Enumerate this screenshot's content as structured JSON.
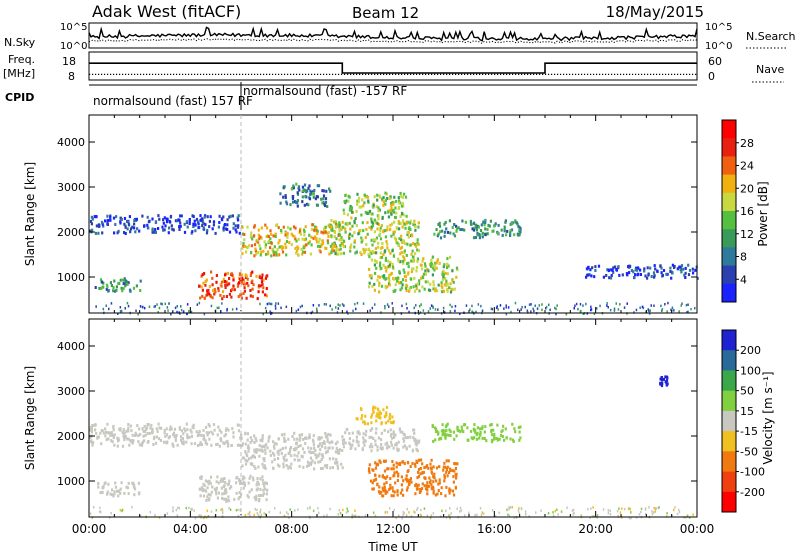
{
  "header": {
    "station": "Adak West (fitACF)",
    "beam": "Beam 12",
    "date": "18/May/2015"
  },
  "left_labels": {
    "nsky": "N.Sky",
    "freq": "Freq.",
    "freq_unit": "[MHz]",
    "cpid": "CPID"
  },
  "right_labels": {
    "nsearch": "N.Search",
    "nave": "Nave"
  },
  "cpid_blocks": [
    {
      "label": "normalsound (fast) 157 RF",
      "start_hour": 0,
      "end_hour": 6
    },
    {
      "label": "normalsound (fast) -157 RF",
      "start_hour": 6,
      "end_hour": 24
    }
  ],
  "colors": {
    "power": [
      "#1a22ff",
      "#2a3fb0",
      "#2f7a9a",
      "#3a9a5a",
      "#55c040",
      "#c8d840",
      "#f0b010",
      "#f06010",
      "#e82010",
      "#ff0000"
    ],
    "velocity": [
      "#ff0000",
      "#f04010",
      "#f07a10",
      "#f0c020",
      "#c8c8c0",
      "#80d040",
      "#3aa84a",
      "#2a6a9a",
      "#1e22d0"
    ]
  },
  "chart_data": [
    {
      "type": "line",
      "panel": "noise",
      "y_left_ticks": [
        "10^5",
        "10^0"
      ],
      "y_right_ticks": [
        "10^5",
        "10^0"
      ],
      "series": [
        {
          "name": "N.Sky",
          "style": "solid"
        },
        {
          "name": "N.Search",
          "style": "dotted"
        }
      ]
    },
    {
      "type": "line",
      "panel": "frequency",
      "ylim_left": [
        8,
        18
      ],
      "y_left_ticks": [
        "18",
        "8"
      ],
      "ylim_right": [
        0,
        60
      ],
      "y_right_ticks": [
        "60",
        "0"
      ],
      "series": [
        {
          "name": "Freq.",
          "style": "solid",
          "x": [
            0,
            10,
            10,
            18,
            18,
            24
          ],
          "y": [
            14,
            14,
            10.5,
            10.5,
            14,
            14
          ]
        },
        {
          "name": "Nave",
          "style": "dotted",
          "x": [
            0,
            24
          ],
          "y": [
            10,
            10
          ]
        }
      ]
    },
    {
      "type": "heatmap",
      "panel": "power",
      "xlabel": "",
      "ylabel": "Slant Range [km]",
      "ylim": [
        200,
        4600
      ],
      "y_ticks": [
        1000,
        2000,
        3000,
        4000
      ],
      "xlim": [
        0,
        24
      ],
      "colorbar": {
        "label": "Power [dB]",
        "ticks": [
          4,
          8,
          12,
          16,
          20,
          24,
          28
        ]
      },
      "regions": [
        {
          "x": [
            0.2,
            2.0
          ],
          "y": [
            700,
            1000
          ],
          "value": 12
        },
        {
          "x": [
            0.0,
            6.0
          ],
          "y": [
            2000,
            2400
          ],
          "value": 6
        },
        {
          "x": [
            4.3,
            7.0
          ],
          "y": [
            550,
            1150
          ],
          "value": 26
        },
        {
          "x": [
            6.0,
            10.0
          ],
          "y": [
            1500,
            2200
          ],
          "value": 20
        },
        {
          "x": [
            7.5,
            9.5
          ],
          "y": [
            2600,
            3100
          ],
          "value": 10
        },
        {
          "x": [
            9.5,
            13.0
          ],
          "y": [
            1500,
            2300
          ],
          "value": 18
        },
        {
          "x": [
            10.0,
            12.5
          ],
          "y": [
            2300,
            2900
          ],
          "value": 16
        },
        {
          "x": [
            11.0,
            14.5
          ],
          "y": [
            700,
            1500
          ],
          "value": 18
        },
        {
          "x": [
            13.5,
            17.0
          ],
          "y": [
            1900,
            2300
          ],
          "value": 12
        },
        {
          "x": [
            19.5,
            24.0
          ],
          "y": [
            1000,
            1300
          ],
          "value": 6
        }
      ]
    },
    {
      "type": "heatmap",
      "panel": "velocity",
      "xlabel": "Time UT",
      "ylabel": "Slant Range [km]",
      "ylim": [
        200,
        4600
      ],
      "y_ticks": [
        1000,
        2000,
        3000,
        4000
      ],
      "xlim": [
        0,
        24
      ],
      "x_ticks": [
        "00:00",
        "04:00",
        "08:00",
        "12:00",
        "16:00",
        "20:00",
        "00:00"
      ],
      "colorbar": {
        "label": "Velocity [m s⁻¹]",
        "ticks": [
          200,
          100,
          50,
          15,
          -15,
          -50,
          -100,
          -200
        ]
      },
      "regions": [
        {
          "x": [
            0.2,
            2.0
          ],
          "y": [
            700,
            1000
          ],
          "value": 0
        },
        {
          "x": [
            0.0,
            6.0
          ],
          "y": [
            1800,
            2300
          ],
          "value": 0
        },
        {
          "x": [
            4.3,
            7.0
          ],
          "y": [
            550,
            1150
          ],
          "value": 0
        },
        {
          "x": [
            6.0,
            10.0
          ],
          "y": [
            1300,
            2100
          ],
          "value": 0
        },
        {
          "x": [
            10.5,
            12.0
          ],
          "y": [
            2300,
            2700
          ],
          "value": -40
        },
        {
          "x": [
            10.0,
            13.0
          ],
          "y": [
            1700,
            2200
          ],
          "value": 0
        },
        {
          "x": [
            11.0,
            14.5
          ],
          "y": [
            700,
            1500
          ],
          "value": -70
        },
        {
          "x": [
            13.5,
            17.0
          ],
          "y": [
            1900,
            2300
          ],
          "value": 40
        },
        {
          "x": [
            22.5,
            22.8
          ],
          "y": [
            3150,
            3350
          ],
          "value": 220
        }
      ]
    }
  ]
}
